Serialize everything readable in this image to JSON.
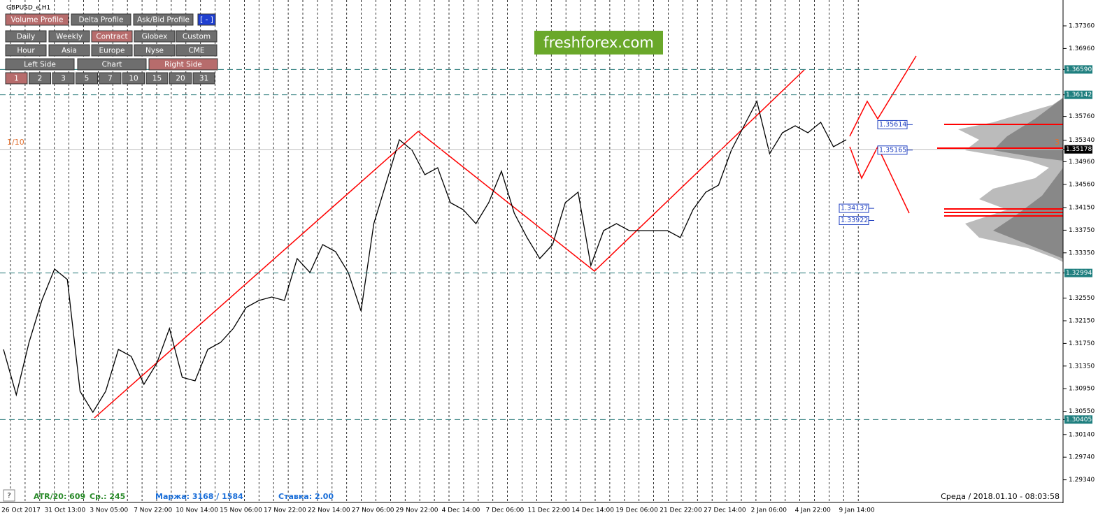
{
  "symbol": "GBPUSD_e,H1",
  "toolbar": {
    "row1": [
      "Volume Profile",
      "Delta Profile",
      "Ask/Bid Profile",
      "[ - ]"
    ],
    "row2": [
      "Daily",
      "Weekly",
      "Contract",
      "Globex",
      "Custom"
    ],
    "row3": [
      "Hour",
      "Asia",
      "Europe",
      "Nyse",
      "CME"
    ],
    "row4": [
      "Left Side",
      "Chart",
      "Right Side"
    ],
    "row5": [
      "1",
      "2",
      "3",
      "5",
      "7",
      "10",
      "15",
      "20",
      "31"
    ]
  },
  "logo": "freshforex.com",
  "left_note": "1/10",
  "right_note": "3",
  "ylim": [
    1.2894,
    1.37817
  ],
  "yticks": [
    {
      "value": 1.3736,
      "label": "1.37360"
    },
    {
      "value": 1.3696,
      "label": "1.36960"
    },
    {
      "value": 1.3659,
      "label": "1.36590",
      "highlight": true
    },
    {
      "value": 1.36142,
      "label": "1.36142",
      "highlight": true
    },
    {
      "value": 1.3576,
      "label": "1.35760"
    },
    {
      "value": 1.3534,
      "label": "1.35340"
    },
    {
      "value": 1.35178,
      "label": "1.35178",
      "current": true
    },
    {
      "value": 1.3496,
      "label": "1.34960"
    },
    {
      "value": 1.3456,
      "label": "1.34560"
    },
    {
      "value": 1.3415,
      "label": "1.34150"
    },
    {
      "value": 1.3375,
      "label": "1.33750"
    },
    {
      "value": 1.3335,
      "label": "1.33350"
    },
    {
      "value": 1.32994,
      "label": "1.32994",
      "highlight": true
    },
    {
      "value": 1.3255,
      "label": "1.32550"
    },
    {
      "value": 1.3215,
      "label": "1.32150"
    },
    {
      "value": 1.3175,
      "label": "1.31750"
    },
    {
      "value": 1.3135,
      "label": "1.31350"
    },
    {
      "value": 1.3095,
      "label": "1.30950"
    },
    {
      "value": 1.3055,
      "label": "1.30550"
    },
    {
      "value": 1.30405,
      "label": "1.30405",
      "highlight": true
    },
    {
      "value": 1.3014,
      "label": "1.30140"
    },
    {
      "value": 1.2974,
      "label": "1.29740"
    },
    {
      "value": 1.2934,
      "label": "1.29340"
    }
  ],
  "xticks": [
    "26 Oct 2017",
    "31 Oct 13:00",
    "3 Nov 05:00",
    "7 Nov 22:00",
    "10 Nov 14:00",
    "15 Nov 06:00",
    "17 Nov 22:00",
    "22 Nov 14:00",
    "27 Nov 06:00",
    "29 Nov 22:00",
    "4 Dec 14:00",
    "7 Dec 06:00",
    "11 Dec 22:00",
    "14 Dec 14:00",
    "19 Dec 06:00",
    "21 Dec 22:00",
    "27 Dec 14:00",
    "2 Jan 06:00",
    "4 Jan 22:00",
    "9 Jan 14:00"
  ],
  "price_series": [
    1.31644,
    1.30841,
    1.31767,
    1.32508,
    1.33064,
    1.32879,
    1.30903,
    1.30533,
    1.30903,
    1.31644,
    1.3152,
    1.31027,
    1.31397,
    1.32014,
    1.3115,
    1.31088,
    1.31644,
    1.31767,
    1.32014,
    1.32385,
    1.32508,
    1.3257,
    1.32508,
    1.33249,
    1.33002,
    1.33496,
    1.33372,
    1.33002,
    1.32323,
    1.33866,
    1.34607,
    1.35348,
    1.35162,
    1.3473,
    1.34854,
    1.34237,
    1.34113,
    1.33866,
    1.34237,
    1.34792,
    1.34051,
    1.33619,
    1.33249,
    1.33496,
    1.34237,
    1.34422,
    1.33125,
    1.33743,
    1.33866,
    1.33743,
    1.33743,
    1.33743,
    1.33743,
    1.33619,
    1.34113,
    1.34422,
    1.34546,
    1.35162,
    1.35595,
    1.36027,
    1.35101,
    1.35471,
    1.35595,
    1.35471,
    1.35656,
    1.35224,
    1.35348
  ],
  "level_boxes": [
    {
      "value": 1.35614,
      "label": "1.35614"
    },
    {
      "value": 1.35165,
      "label": "1.35165"
    },
    {
      "value": 1.34137,
      "label": "1.34137"
    },
    {
      "value": 1.33922,
      "label": "1.33922"
    }
  ],
  "status": {
    "help": "?",
    "atr": "ATR/20: 609",
    "avg": "Ср.: 245",
    "margin": "Маржа: 3168 / 1584",
    "rate": "Ставка: 2.00",
    "datetime": "Среда / 2018.01.10 - 08:03:58"
  }
}
